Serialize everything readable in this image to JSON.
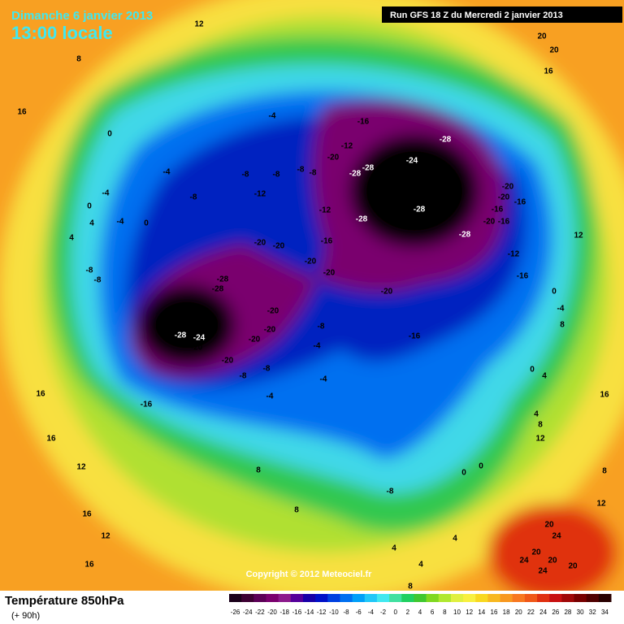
{
  "header": {
    "date": "Dimanche 6 janvier 2013",
    "time": "13:00 locale",
    "run": "Run GFS 18 Z du Mercredi 2 janvier 2013"
  },
  "footer": {
    "label": "Température 850hPa",
    "step": "(+ 90h)",
    "copyright": "Copyright © 2012 Meteociel.fr"
  },
  "colorbar": {
    "ticks": [
      -26,
      -24,
      -22,
      -20,
      -18,
      -16,
      -14,
      -12,
      -10,
      -8,
      -6,
      -4,
      -2,
      0,
      2,
      4,
      6,
      8,
      10,
      12,
      14,
      16,
      18,
      20,
      22,
      24,
      26,
      28,
      30,
      32,
      34
    ],
    "colors": [
      "#1a001a",
      "#3d0033",
      "#5c0057",
      "#7a006e",
      "#8c1a8c",
      "#55009a",
      "#1800a8",
      "#0010c8",
      "#0040e0",
      "#0070f0",
      "#00a0f8",
      "#20c8f8",
      "#40e8f0",
      "#40e0a0",
      "#20d060",
      "#40c830",
      "#80d820",
      "#b0e830",
      "#e0f040",
      "#f8f040",
      "#f8d820",
      "#f8b820",
      "#f89820",
      "#f87820",
      "#f05818",
      "#e03010",
      "#c81010",
      "#a00808",
      "#780000",
      "#500000",
      "#280000"
    ]
  },
  "map": {
    "labels": [
      "0",
      "-4",
      "-16",
      "-28",
      "-12",
      "-20",
      "-24",
      "-28",
      "-28",
      "-20",
      "-4",
      "-20",
      "-20",
      "-16",
      "-16",
      "-20",
      "-16",
      "-28",
      "-28",
      "-28",
      "-12",
      "-16",
      "-20",
      "-20",
      "-20",
      "-20",
      "-12",
      "-16",
      "-20",
      "-28",
      "-28",
      "-20",
      "-20",
      "-28",
      "-24",
      "-20",
      "-20",
      "-20",
      "-16",
      "-8",
      "-4",
      "-8",
      "-8",
      "-4",
      "-16",
      "-4",
      "-8",
      "0",
      "0",
      "-8",
      "-8",
      "-8",
      "-8",
      "-8",
      "-8",
      "-12",
      "-8",
      "-4",
      "-4",
      "0",
      "0",
      "-4",
      "4",
      "4",
      "0",
      "-4",
      "12",
      "8",
      "4",
      "0",
      "4",
      "8",
      "12",
      "12",
      "8",
      "16",
      "16",
      "16",
      "12",
      "16",
      "12",
      "16",
      "20",
      "20",
      "16",
      "20",
      "24",
      "20",
      "24",
      "20",
      "24",
      "20",
      "8",
      "8",
      "4",
      "8",
      "4",
      "4",
      "16",
      "12",
      "8"
    ]
  }
}
